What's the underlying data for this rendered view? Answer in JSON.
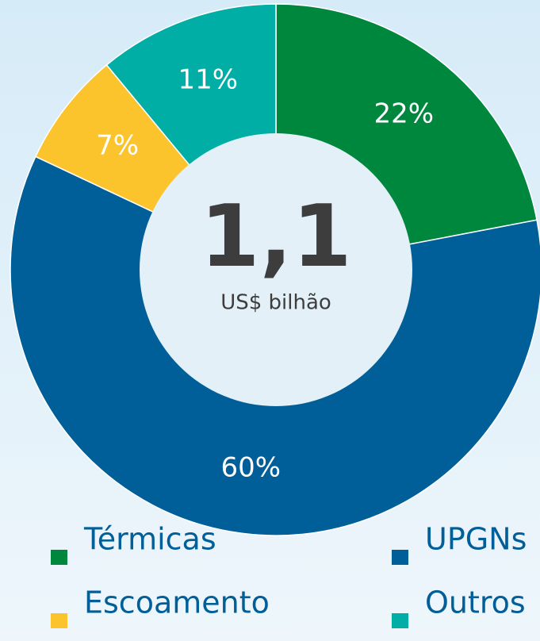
{
  "chart_data": {
    "type": "donut",
    "center_value": "1,1",
    "center_label": "US$ bilhão",
    "categories": [
      "Térmicas",
      "UPGNs",
      "Escoamento",
      "Outros"
    ],
    "values": [
      22,
      60,
      7,
      11
    ],
    "value_labels": [
      "22%",
      "60%",
      "7%",
      "11%"
    ],
    "colors": [
      "#00873e",
      "#005f99",
      "#fcc42c",
      "#00aea5"
    ],
    "legend": "bottom"
  }
}
